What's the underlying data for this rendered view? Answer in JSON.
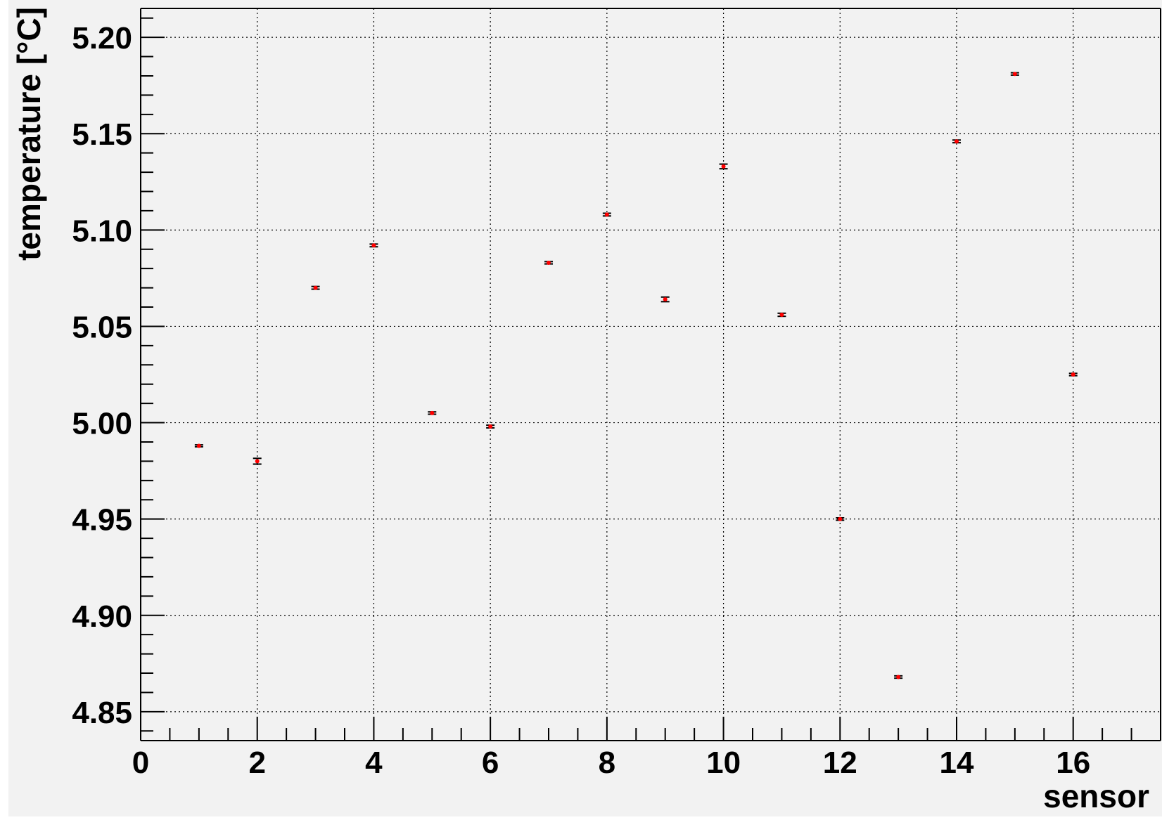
{
  "chart_data": {
    "type": "scatter",
    "title": "",
    "xlabel": "sensor",
    "ylabel": "temperature [°C]",
    "xlim": [
      0,
      17.5
    ],
    "ylim": [
      4.835,
      5.215
    ],
    "x_ticks": [
      0,
      2,
      4,
      6,
      8,
      10,
      12,
      14,
      16
    ],
    "x_tick_labels": [
      "0",
      "2",
      "4",
      "6",
      "8",
      "10",
      "12",
      "14",
      "16"
    ],
    "y_ticks": [
      4.85,
      4.9,
      4.95,
      5.0,
      5.05,
      5.1,
      5.15,
      5.2
    ],
    "y_tick_labels": [
      "4.85",
      "4.90",
      "4.95",
      "5.00",
      "5.05",
      "5.10",
      "5.15",
      "5.20"
    ],
    "grid": true,
    "series": [
      {
        "marker_color": "#ff0000",
        "errorbar_color": "#000000",
        "x": [
          1,
          2,
          3,
          4,
          5,
          6,
          7,
          8,
          9,
          10,
          11,
          12,
          13,
          14,
          15,
          16
        ],
        "y": [
          4.988,
          4.98,
          5.07,
          5.092,
          5.005,
          4.998,
          5.083,
          5.108,
          5.064,
          5.133,
          5.056,
          4.95,
          4.868,
          5.146,
          5.181,
          5.025
        ],
        "y_err": [
          0.0005,
          0.0015,
          0.0007,
          0.0007,
          0.0006,
          0.0007,
          0.0006,
          0.0007,
          0.0012,
          0.0012,
          0.0008,
          0.0006,
          0.0006,
          0.0007,
          0.0006,
          0.0006
        ]
      }
    ]
  }
}
